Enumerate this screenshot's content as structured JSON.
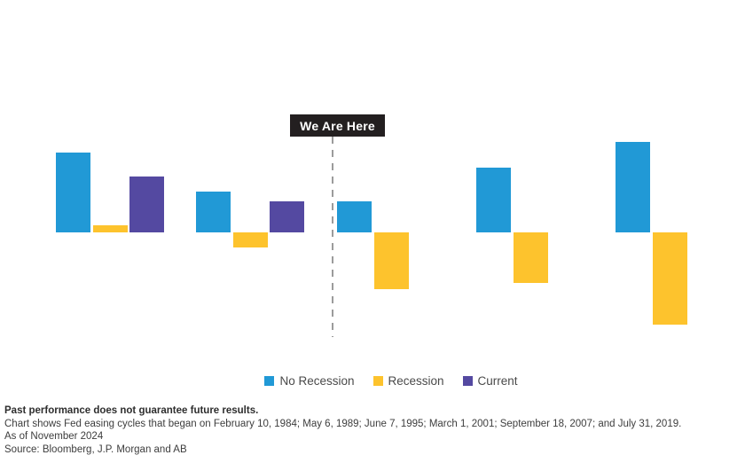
{
  "chart_data": {
    "type": "bar",
    "title": "",
    "categories": [
      "",
      "",
      "",
      "",
      ""
    ],
    "series": [
      {
        "name": "No Recession",
        "color": "#2199D6",
        "values": [
          90,
          46,
          35,
          73,
          102
        ]
      },
      {
        "name": "Recession",
        "color": "#FDC32D",
        "values": [
          8,
          -17,
          -64,
          -57,
          -104
        ]
      },
      {
        "name": "Current",
        "color": "#5449A1",
        "values": [
          63,
          35,
          null,
          null,
          null
        ]
      }
    ],
    "value_units": "relative-pixels (chart displays no y-axis, gridlines or value labels)",
    "ylim": [
      -110,
      110
    ],
    "baseline": 0,
    "grid": false,
    "axes_shown": false,
    "legend_position": "bottom",
    "annotation": {
      "label": "We Are Here"
    },
    "colors": {
      "annotation_background": "#231f20",
      "annotation_text": "#ffffff",
      "divider_line": "#9b9b9b",
      "background": "#ffffff"
    }
  },
  "footer": {
    "disclaimer": "Past performance does not guarantee future results.",
    "description": "Chart shows Fed easing cycles that began on February 10, 1984; May 6, 1989; June 7, 1995; March 1, 2001; September 18, 2007; and July 31, 2019.",
    "as_of": "As of November 2024",
    "source": "Source: Bloomberg, J.P. Morgan and AB"
  }
}
